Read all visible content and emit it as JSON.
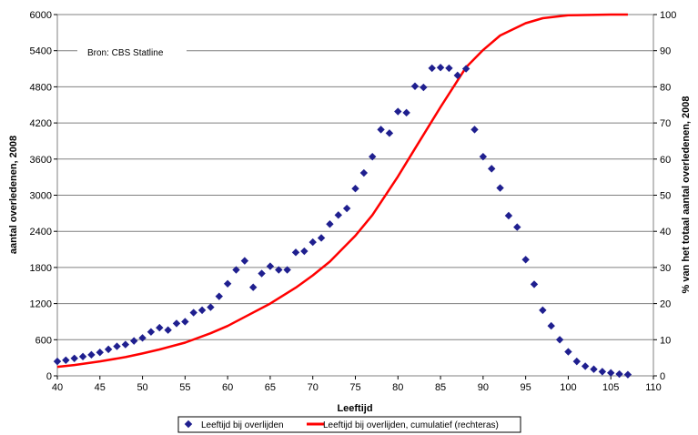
{
  "chart_data": {
    "type": "scatter",
    "xlabel": "Leeftijd",
    "ylabel": "aantal overledenen, 2008",
    "y2label": "% van het totaal aantal overledenen, 2008",
    "xlim": [
      40,
      110
    ],
    "ylim": [
      0,
      6000
    ],
    "y2lim": [
      0,
      100
    ],
    "x_ticks": [
      40,
      45,
      50,
      55,
      60,
      65,
      70,
      75,
      80,
      85,
      90,
      95,
      100,
      105,
      110
    ],
    "y_ticks": [
      0,
      600,
      1200,
      1800,
      2400,
      3000,
      3600,
      4200,
      4800,
      5400,
      6000
    ],
    "y2_ticks": [
      0,
      10,
      20,
      30,
      40,
      50,
      60,
      70,
      80,
      90,
      100
    ],
    "grid": "horizontal",
    "legend_position": "bottom",
    "annotation": "Bron: CBS Statline",
    "colors": {
      "points": "#1f1f8f",
      "line": "#ff0000",
      "grid": "#808080"
    },
    "series": [
      {
        "name": "Leeftijd bij overlijden",
        "kind": "scatter",
        "axis": "left",
        "x": [
          40,
          41,
          42,
          43,
          44,
          45,
          46,
          47,
          48,
          49,
          50,
          51,
          52,
          53,
          54,
          55,
          56,
          57,
          58,
          59,
          60,
          61,
          62,
          63,
          64,
          65,
          66,
          67,
          68,
          69,
          70,
          71,
          72,
          73,
          74,
          75,
          76,
          77,
          78,
          79,
          80,
          81,
          82,
          83,
          84,
          85,
          86,
          87,
          88,
          89,
          90,
          91,
          92,
          93,
          94,
          95,
          96,
          97,
          98,
          99,
          100,
          101,
          102,
          103,
          104,
          105,
          106,
          107
        ],
        "y": [
          240,
          260,
          290,
          320,
          350,
          390,
          440,
          490,
          520,
          580,
          630,
          730,
          800,
          760,
          870,
          900,
          1050,
          1090,
          1140,
          1320,
          1530,
          1760,
          1910,
          1470,
          1700,
          1820,
          1760,
          1760,
          2050,
          2070,
          2220,
          2290,
          2520,
          2670,
          2780,
          3110,
          3370,
          3640,
          4090,
          4030,
          4390,
          4370,
          4810,
          4790,
          5110,
          5120,
          5110,
          4990,
          5100,
          4090,
          3640,
          3440,
          3120,
          2660,
          2470,
          1930,
          1520,
          1090,
          830,
          600,
          400,
          240,
          160,
          110,
          70,
          50,
          30,
          20
        ]
      },
      {
        "name": "Leeftijd bij overlijden, cumulatief (rechteras)",
        "kind": "line",
        "axis": "right",
        "x": [
          40,
          42,
          45,
          48,
          50,
          52,
          55,
          58,
          60,
          62,
          65,
          68,
          70,
          72,
          75,
          77,
          80,
          82,
          85,
          88,
          90,
          92,
          95,
          97,
          100,
          105,
          107
        ],
        "y": [
          2.5,
          3.0,
          4.0,
          5.2,
          6.2,
          7.3,
          9.2,
          11.8,
          13.8,
          16.3,
          20.0,
          24.4,
          27.8,
          31.6,
          38.8,
          44.5,
          55.2,
          62.9,
          74.4,
          85.4,
          90.2,
          94.2,
          97.6,
          99.0,
          99.8,
          100,
          100
        ]
      }
    ]
  }
}
